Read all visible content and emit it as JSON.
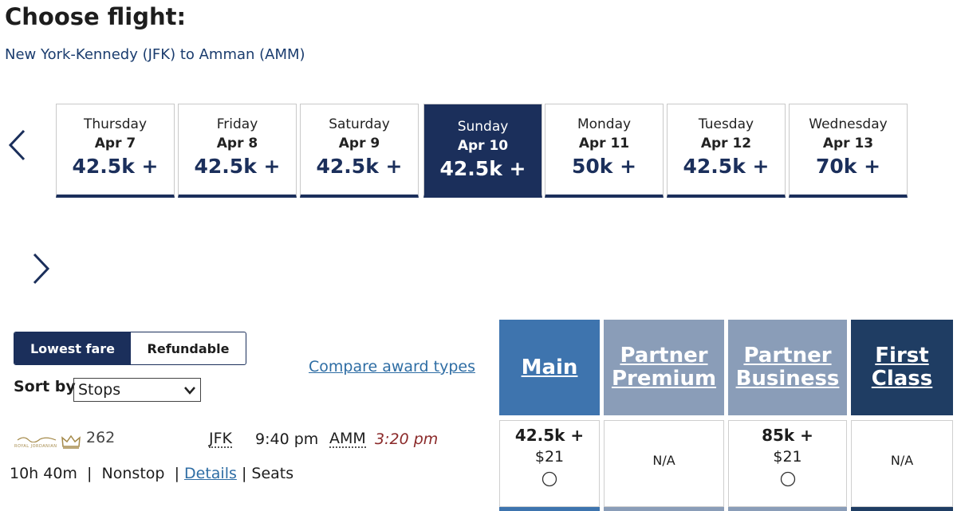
{
  "header": {
    "title": "Choose flight:",
    "route": "New York-Kennedy (JFK) to Amman (AMM)"
  },
  "dates": [
    {
      "day": "Thursday",
      "date": "Apr 7",
      "price": "42.5k +",
      "selected": false
    },
    {
      "day": "Friday",
      "date": "Apr 8",
      "price": "42.5k +",
      "selected": false
    },
    {
      "day": "Saturday",
      "date": "Apr 9",
      "price": "42.5k +",
      "selected": false
    },
    {
      "day": "Sunday",
      "date": "Apr 10",
      "price": "42.5k +",
      "selected": true
    },
    {
      "day": "Monday",
      "date": "Apr 11",
      "price": "50k +",
      "selected": false
    },
    {
      "day": "Tuesday",
      "date": "Apr 12",
      "price": "42.5k +",
      "selected": false
    },
    {
      "day": "Wednesday",
      "date": "Apr 13",
      "price": "70k +",
      "selected": false
    }
  ],
  "fare_toggle": {
    "options": [
      "Lowest fare",
      "Refundable"
    ],
    "selected": 0
  },
  "sort": {
    "label": "Sort by",
    "value": "Stops"
  },
  "compare_link": "Compare award types",
  "fare_columns": [
    {
      "name": "Main",
      "color": "#3e74ae"
    },
    {
      "name": "Partner Premium",
      "color": "#8a9db8"
    },
    {
      "name": "Partner Business",
      "color": "#8a9db8"
    },
    {
      "name": "First Class",
      "color": "#1f3d63"
    }
  ],
  "flights": [
    {
      "logo_text": "ROYAL JORDANIAN",
      "number": "262",
      "origin": "JFK",
      "depart": "9:40 pm",
      "destination": "AMM",
      "arrive": "3:20 pm",
      "duration": "10h 40m",
      "separator": "|",
      "stops": "Nonstop",
      "details": "Details",
      "seats": "Seats",
      "fares": [
        {
          "points": "42.5k +",
          "fee": "$21"
        },
        {
          "status": "N/A"
        },
        {
          "points": "85k +",
          "fee": "$21"
        },
        {
          "status": "N/A"
        }
      ]
    }
  ]
}
